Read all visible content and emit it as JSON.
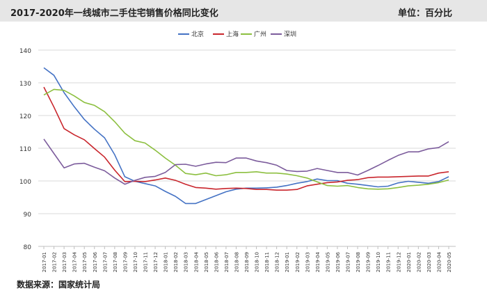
{
  "header": {
    "title": "2017-2020年一线城市二手住宅销售价格同比变化",
    "unit": "单位：百分比"
  },
  "footer": {
    "source": "数据来源：国家统计局"
  },
  "chart_data": {
    "type": "line",
    "title": "2017-2020年一线城市二手住宅销售价格同比变化",
    "ylim": [
      80,
      140
    ],
    "yticks": [
      80,
      90,
      100,
      110,
      120,
      130,
      140
    ],
    "grid": true,
    "legend_position": "top-center",
    "x": [
      "2017-01",
      "2017-02",
      "2017-03",
      "2017-04",
      "2017-05",
      "2017-06",
      "2017-07",
      "2017-08",
      "2017-09",
      "2017-10",
      "2017-11",
      "2017-12",
      "2018-01",
      "2018-02",
      "2018-03",
      "2018-04",
      "2018-05",
      "2018-06",
      "2018-07",
      "2018-08",
      "2018-09",
      "2018-10",
      "2018-11",
      "2018-12",
      "2019-01",
      "2019-02",
      "2019-03",
      "2019-04",
      "2019-05",
      "2019-06",
      "2019-07",
      "2019-08",
      "2019-09",
      "2019-10",
      "2019-11",
      "2019-12",
      "2020-01",
      "2020-02",
      "2020-03",
      "2020-04",
      "2020-05"
    ],
    "xtick_labels": [
      "2017-01",
      "2017-02",
      "2017-03",
      "2017-04",
      "2017-05",
      "2017-06",
      "2017-07",
      "2017-08",
      "2017-09",
      "2017-10",
      "2017-11",
      "2017-12",
      "2018-01",
      "2018-02",
      "2018-03",
      "2018-04",
      "2018-05",
      "2018-06",
      "2018-07",
      "2018-08",
      "2018-09",
      "2018-10",
      "2018-11",
      "2018-12",
      "2019-01",
      "2019-02",
      "2019-03",
      "2019-04",
      "2019-05",
      "2019-06",
      "2019-07",
      "2019-08",
      "2019-09",
      "2019-10",
      "2019-11",
      "2019-12",
      "2020-01",
      "2020-02",
      "2020-03",
      "2020-04",
      "2020-05"
    ],
    "series": [
      {
        "name": "北京",
        "color": "#4472c4",
        "values": [
          134.6,
          132.3,
          127.0,
          122.7,
          118.8,
          115.8,
          113.2,
          108.0,
          101.3,
          99.9,
          99.2,
          98.5,
          96.8,
          95.3,
          93.1,
          93.1,
          94.3,
          95.5,
          96.7,
          97.5,
          97.8,
          97.8,
          97.9,
          98.1,
          98.6,
          99.3,
          99.8,
          100.6,
          100.1,
          100.1,
          99.3,
          99.0,
          98.6,
          98.2,
          98.4,
          99.4,
          99.9,
          99.6,
          99.3,
          99.8,
          101.3
        ]
      },
      {
        "name": "上海",
        "color": "#c9252c",
        "values": [
          128.7,
          122.6,
          116.0,
          114.1,
          112.6,
          109.9,
          107.3,
          103.3,
          99.8,
          99.9,
          99.8,
          100.3,
          100.9,
          100.2,
          99.0,
          98.0,
          97.8,
          97.5,
          97.7,
          97.8,
          97.7,
          97.4,
          97.4,
          97.2,
          97.2,
          97.4,
          98.5,
          99.0,
          99.5,
          99.7,
          100.2,
          100.4,
          101.0,
          101.2,
          101.2,
          101.3,
          101.4,
          101.5,
          101.5,
          102.4,
          102.8
        ]
      },
      {
        "name": "广州",
        "color": "#8cbf3f",
        "values": [
          126.3,
          128.0,
          127.7,
          126.0,
          124.0,
          123.1,
          121.2,
          118.1,
          114.6,
          112.3,
          111.6,
          109.4,
          107.0,
          104.8,
          102.3,
          101.9,
          102.4,
          101.6,
          101.9,
          102.6,
          102.6,
          102.8,
          102.4,
          102.4,
          102.1,
          101.6,
          100.9,
          99.7,
          98.6,
          98.4,
          98.6,
          98.0,
          97.6,
          97.5,
          97.6,
          98.0,
          98.5,
          98.7,
          99.0,
          99.5,
          100.3
        ]
      },
      {
        "name": "深圳",
        "color": "#7c5c9c",
        "values": [
          112.8,
          108.4,
          104.0,
          105.2,
          105.4,
          104.2,
          103.1,
          100.9,
          99.0,
          100.2,
          101.1,
          101.4,
          102.6,
          105.0,
          105.1,
          104.5,
          105.2,
          105.7,
          105.6,
          107.0,
          107.0,
          106.1,
          105.6,
          104.8,
          103.2,
          102.9,
          103.0,
          103.8,
          103.2,
          102.6,
          102.6,
          101.8,
          103.2,
          104.7,
          106.3,
          107.8,
          108.9,
          108.9,
          109.8,
          110.2,
          112.0
        ]
      }
    ]
  }
}
